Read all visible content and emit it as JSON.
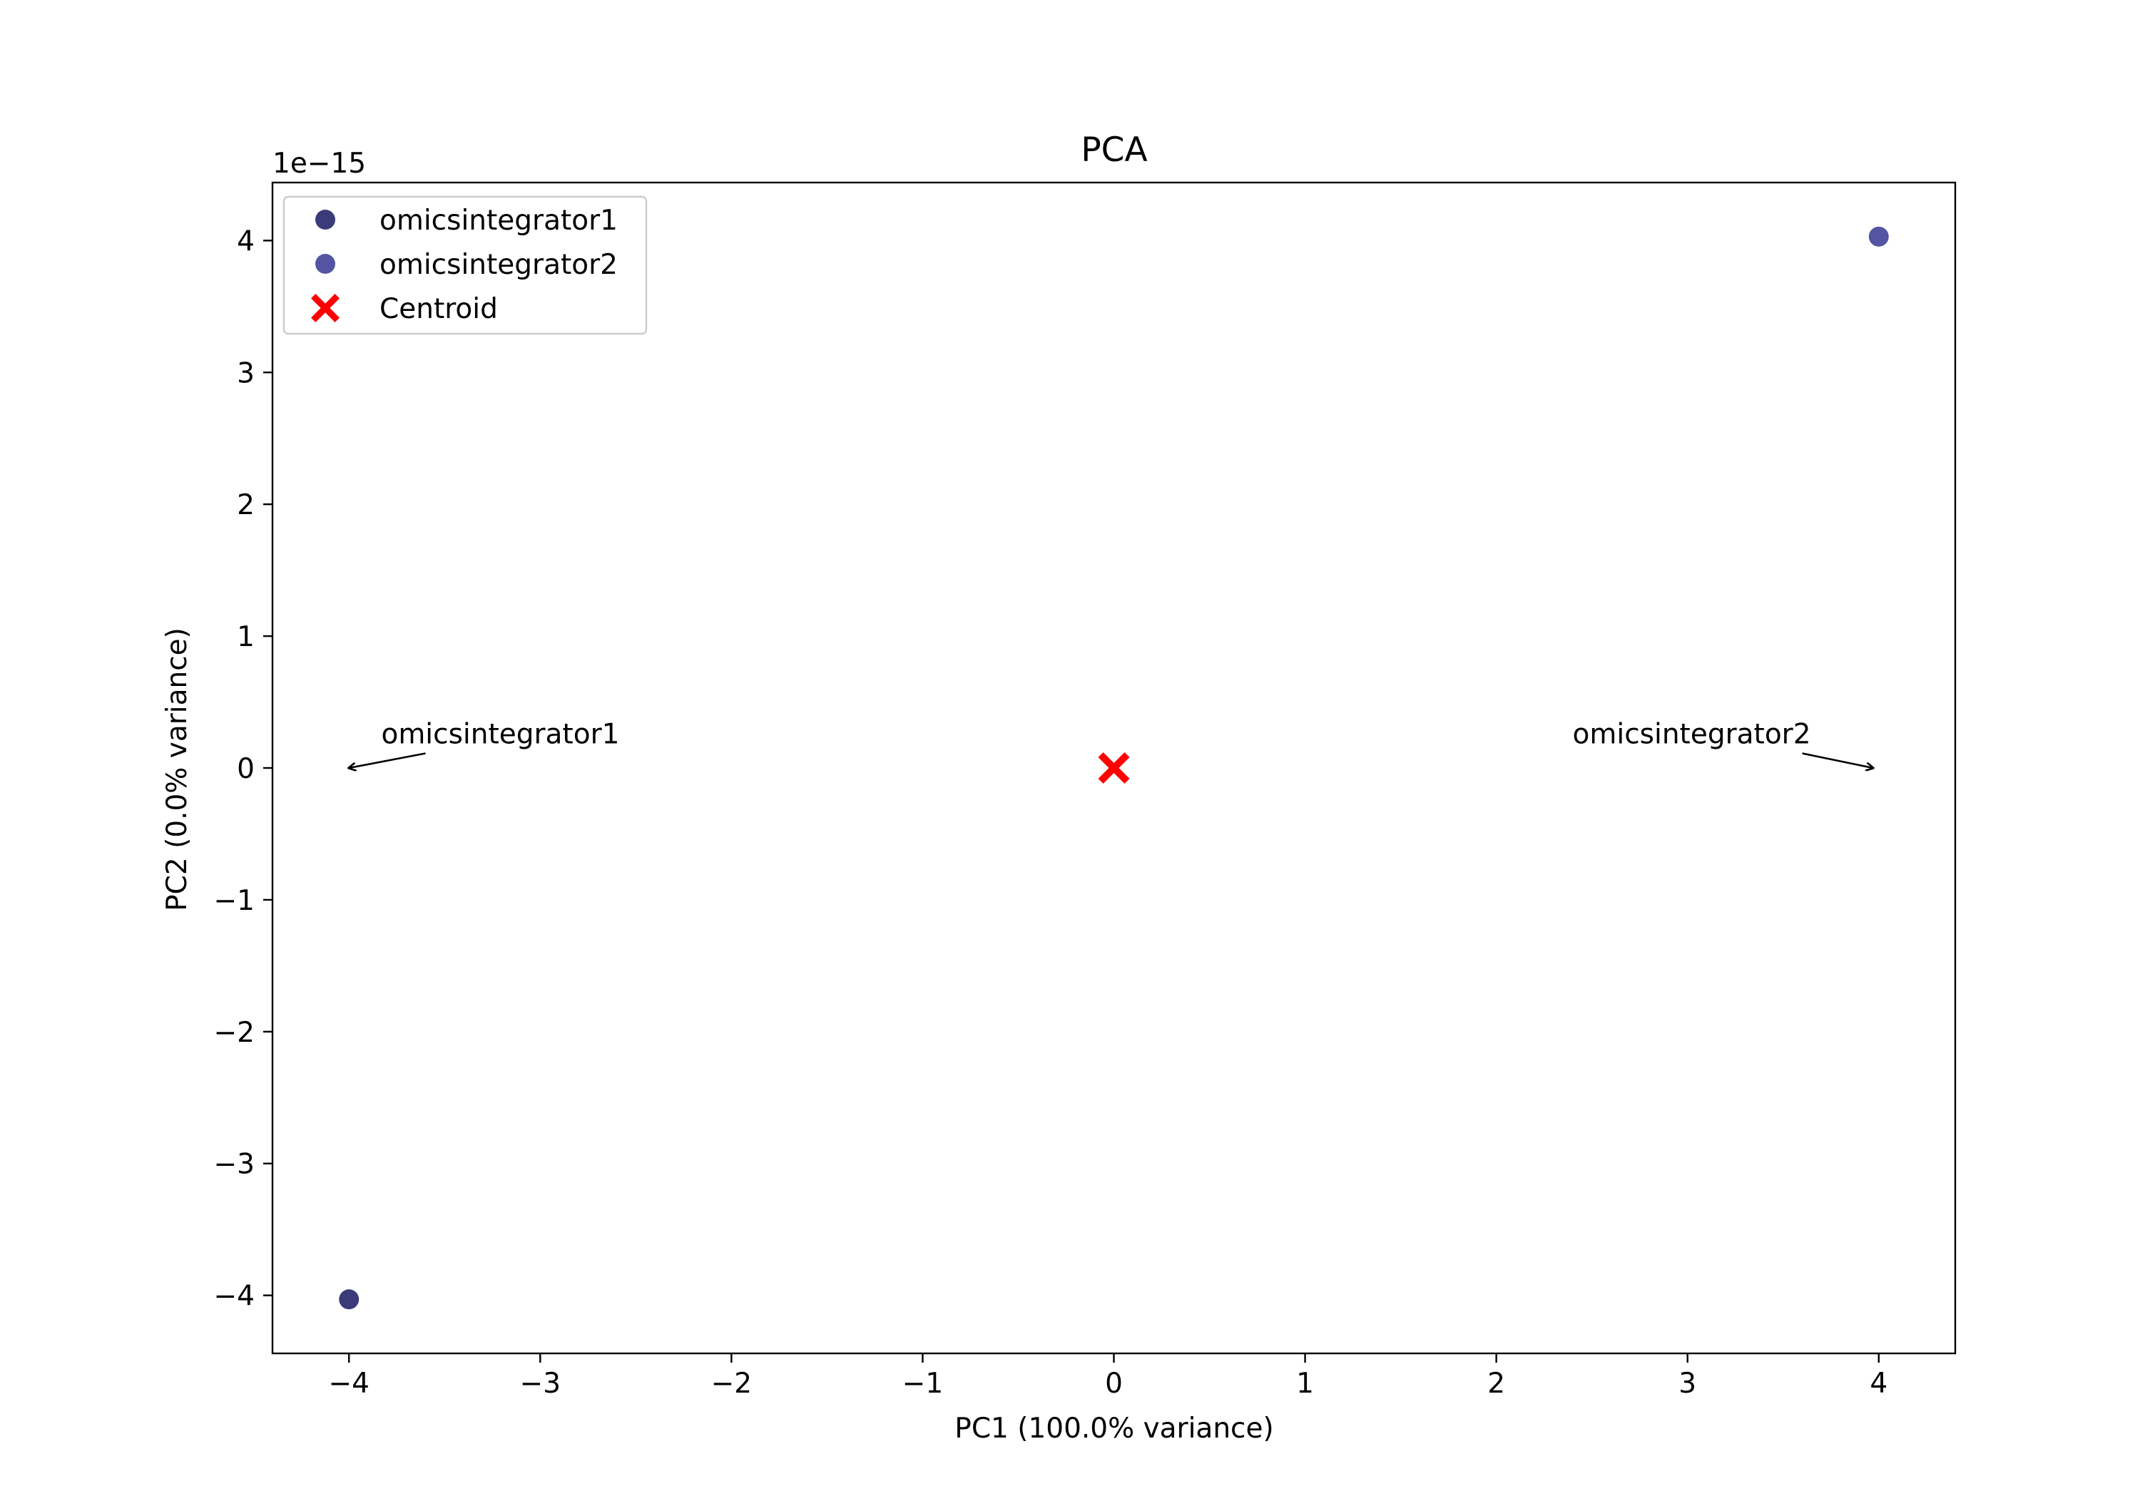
{
  "chart_data": {
    "type": "scatter",
    "title": "PCA",
    "xlabel": "PC1 (100.0% variance)",
    "ylabel": "PC2 (0.0% variance)",
    "y_offset_label": "1e−15",
    "xlim": [
      -4.4,
      4.4
    ],
    "ylim": [
      -4.44,
      4.44
    ],
    "x_ticks": [
      -4,
      -3,
      -2,
      -1,
      0,
      1,
      2,
      3,
      4
    ],
    "x_tick_labels": [
      "−4",
      "−3",
      "−2",
      "−1",
      "0",
      "1",
      "2",
      "3",
      "4"
    ],
    "y_ticks": [
      -4,
      -3,
      -2,
      -1,
      0,
      1,
      2,
      3,
      4
    ],
    "y_tick_labels": [
      "−4",
      "−3",
      "−2",
      "−1",
      "0",
      "1",
      "2",
      "3",
      "4"
    ],
    "grid": false,
    "legend_position": "upper-left",
    "series": [
      {
        "name": "omicsintegrator1",
        "color": "#3b3b7a",
        "marker": "circle",
        "points": [
          {
            "x": -4.0,
            "y": -4.03
          }
        ]
      },
      {
        "name": "omicsintegrator2",
        "color": "#5355a3",
        "marker": "circle",
        "points": [
          {
            "x": 4.0,
            "y": 4.03
          }
        ]
      },
      {
        "name": "Centroid",
        "color": "#ff0000",
        "marker": "x",
        "points": [
          {
            "x": 0.0,
            "y": 0.0
          }
        ]
      }
    ],
    "annotations": [
      {
        "text": "omicsintegrator1",
        "text_x": -3.6,
        "text_y": 0.1,
        "target_x": -4.0,
        "target_y": 0.0,
        "align": "start"
      },
      {
        "text": "omicsintegrator2",
        "text_x": 3.6,
        "text_y": 0.1,
        "target_x": 3.97,
        "target_y": 0.0,
        "align": "end"
      }
    ]
  }
}
